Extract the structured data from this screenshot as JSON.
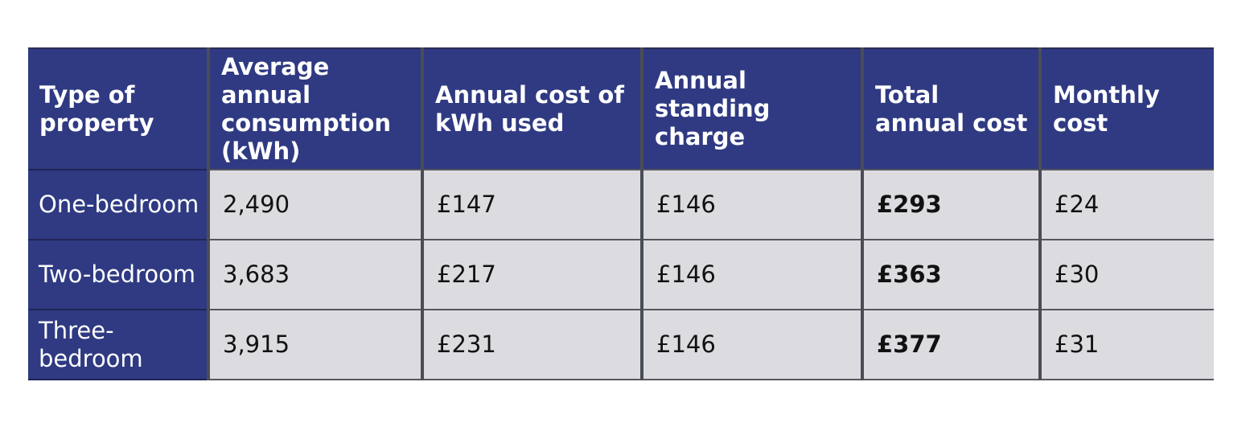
{
  "table": {
    "headers": [
      "Type of property",
      "Average annual consumption (kWh)",
      "Annual cost of kWh used",
      "Annual standing charge",
      "Total annual cost",
      "Monthly cost"
    ],
    "rows": [
      [
        "One-bedroom",
        "2,490",
        "£147",
        "£146",
        "£293",
        "£24"
      ],
      [
        "Two-bedroom",
        "3,683",
        "£217",
        "£146",
        "£363",
        "£30"
      ],
      [
        "Three-bedroom",
        "3,915",
        "£231",
        "£146",
        "£377",
        "£31"
      ]
    ]
  },
  "colors": {
    "header_bg": "#2f3a82",
    "cell_bg": "#dcdce0",
    "separator": "#4a4d55"
  }
}
